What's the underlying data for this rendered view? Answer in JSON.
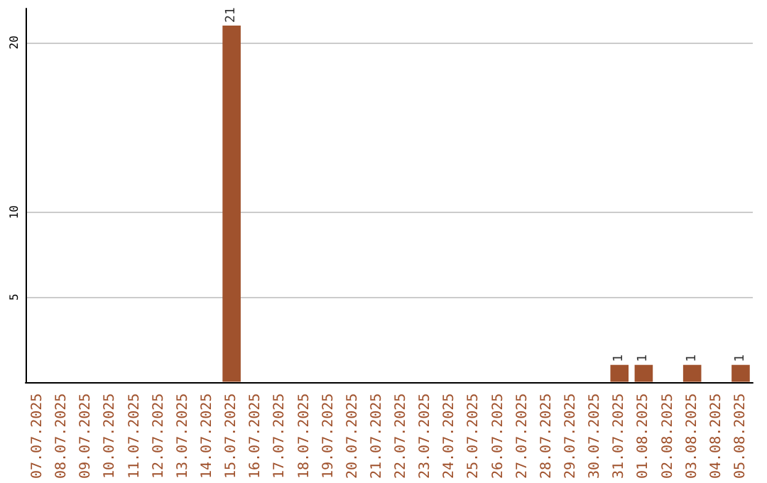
{
  "chart_data": {
    "type": "bar",
    "categories": [
      "07.07.2025",
      "08.07.2025",
      "09.07.2025",
      "10.07.2025",
      "11.07.2025",
      "12.07.2025",
      "13.07.2025",
      "14.07.2025",
      "15.07.2025",
      "16.07.2025",
      "17.07.2025",
      "18.07.2025",
      "19.07.2025",
      "20.07.2025",
      "21.07.2025",
      "22.07.2025",
      "23.07.2025",
      "24.07.2025",
      "25.07.2025",
      "26.07.2025",
      "27.07.2025",
      "28.07.2025",
      "29.07.2025",
      "30.07.2025",
      "31.07.2025",
      "01.08.2025",
      "02.08.2025",
      "03.08.2025",
      "04.08.2025",
      "05.08.2025"
    ],
    "values": [
      0,
      0,
      0,
      0,
      0,
      0,
      0,
      0,
      21,
      0,
      0,
      0,
      0,
      0,
      0,
      0,
      0,
      0,
      0,
      0,
      0,
      0,
      0,
      0,
      1,
      1,
      0,
      1,
      0,
      1
    ],
    "value_labels": [
      null,
      null,
      null,
      null,
      null,
      null,
      null,
      null,
      "21",
      null,
      null,
      null,
      null,
      null,
      null,
      null,
      null,
      null,
      null,
      null,
      null,
      null,
      null,
      null,
      "1",
      "1",
      null,
      "1",
      null,
      "1"
    ],
    "color": "#a0522d",
    "ylim": [
      0,
      22
    ],
    "yticks": [
      5,
      10,
      20
    ],
    "grid": "y"
  }
}
